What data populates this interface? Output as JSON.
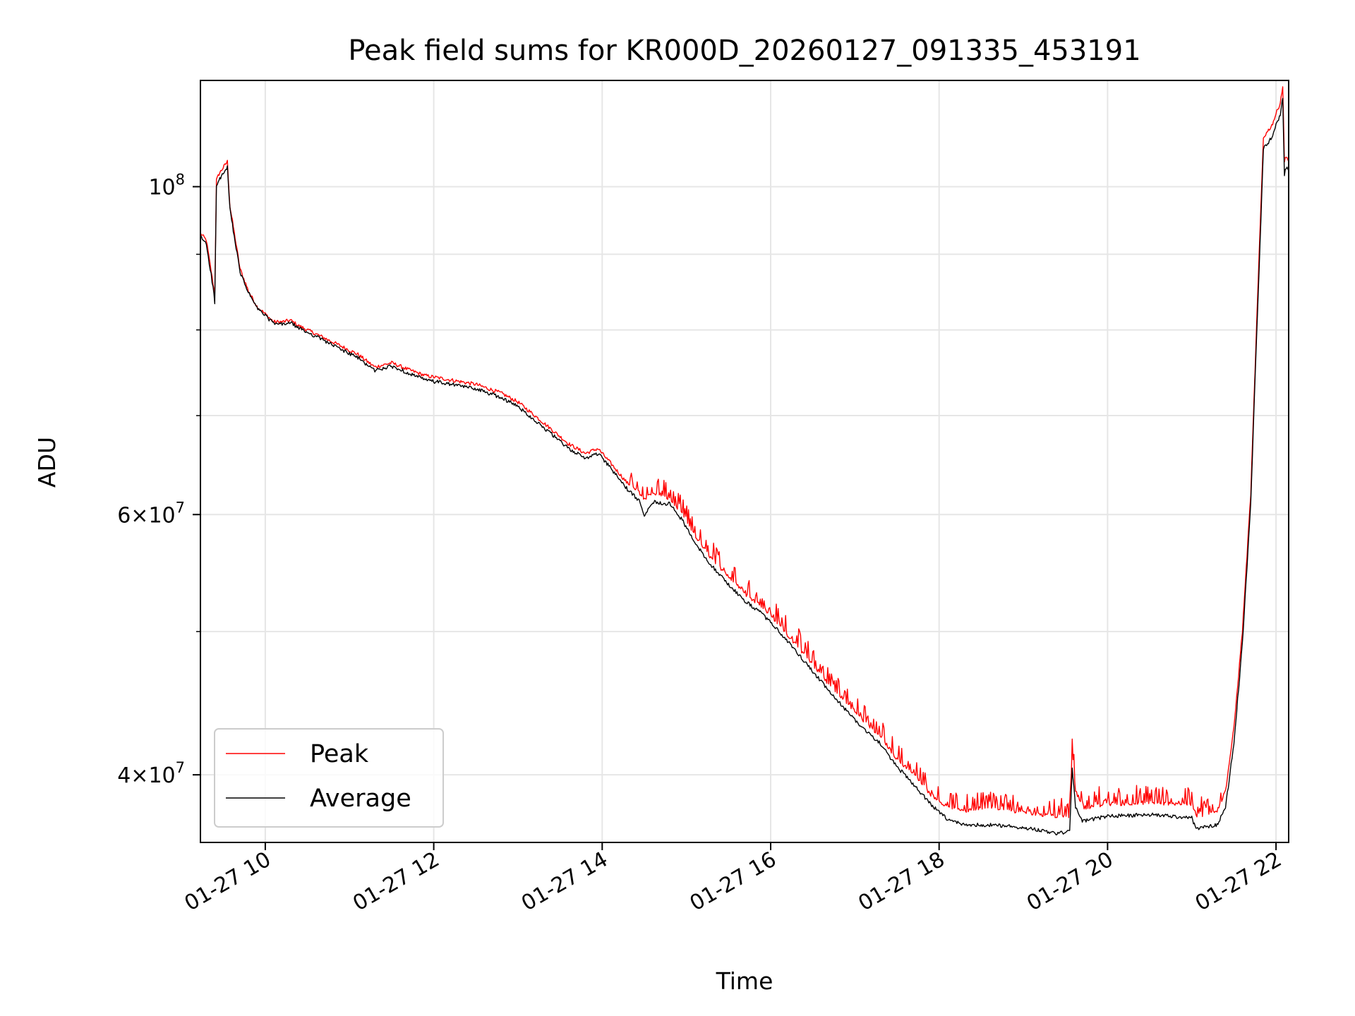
{
  "chart_data": {
    "type": "line",
    "title": "Peak field sums for KR000D_20260127_091335_453191",
    "xlabel": "Time",
    "ylabel": "ADU",
    "yscale": "log",
    "xlim": [
      9.23,
      22.15
    ],
    "ylim": [
      36000000,
      118000000
    ],
    "grid": true,
    "legend_position": "lower-left",
    "x_ticks": [
      {
        "value": 10,
        "label": "01-27 10"
      },
      {
        "value": 12,
        "label": "01-27 12"
      },
      {
        "value": 14,
        "label": "01-27 14"
      },
      {
        "value": 16,
        "label": "01-27 16"
      },
      {
        "value": 18,
        "label": "01-27 18"
      },
      {
        "value": 20,
        "label": "01-27 20"
      },
      {
        "value": 22,
        "label": "01-27 22"
      }
    ],
    "y_ticks": [
      {
        "value": 40000000,
        "base": "4",
        "exp": "7"
      },
      {
        "value": 60000000,
        "base": "6",
        "exp": "7"
      },
      {
        "value": 100000000,
        "base": "",
        "exp": "8"
      }
    ],
    "y_minor_gridlines": [
      50000000,
      70000000,
      80000000,
      90000000
    ],
    "series": [
      {
        "name": "Peak",
        "color": "#ff0000",
        "x": [
          9.23,
          9.3,
          9.38,
          9.4,
          9.42,
          9.45,
          9.5,
          9.55,
          9.58,
          9.62,
          9.7,
          9.8,
          9.9,
          10.0,
          10.1,
          10.2,
          10.3,
          10.4,
          10.5,
          10.7,
          10.9,
          11.1,
          11.3,
          11.5,
          11.7,
          11.9,
          12.2,
          12.5,
          12.8,
          13.0,
          13.2,
          13.4,
          13.6,
          13.8,
          13.95,
          14.1,
          14.3,
          14.45,
          14.5,
          14.6,
          14.8,
          14.95,
          15.1,
          15.3,
          15.5,
          15.7,
          15.9,
          16.1,
          16.3,
          16.5,
          16.7,
          16.9,
          17.1,
          17.3,
          17.5,
          17.7,
          17.9,
          18.1,
          18.3,
          18.6,
          18.9,
          19.2,
          19.4,
          19.55,
          19.58,
          19.62,
          19.7,
          20.0,
          20.5,
          21.0,
          21.05,
          21.3,
          21.4,
          21.5,
          21.6,
          21.7,
          21.75,
          21.8,
          21.85,
          21.9,
          21.95,
          22.0,
          22.05,
          22.08,
          22.1,
          22.12,
          22.15
        ],
        "y": [
          93000000,
          92000000,
          86000000,
          84500000,
          101000000,
          102000000,
          103000000,
          104000000,
          97000000,
          94000000,
          88000000,
          85000000,
          83000000,
          82000000,
          81000000,
          81000000,
          81200000,
          80500000,
          80000000,
          79000000,
          78000000,
          77000000,
          75500000,
          76000000,
          75200000,
          74500000,
          74000000,
          73500000,
          72500000,
          71500000,
          70000000,
          68500000,
          67000000,
          66000000,
          66500000,
          65000000,
          63000000,
          62000000,
          61500000,
          62000000,
          61500000,
          60000000,
          58000000,
          56000000,
          54500000,
          53000000,
          52000000,
          50500000,
          49000000,
          47500000,
          46000000,
          44800000,
          43500000,
          42500000,
          41000000,
          40000000,
          38800000,
          38000000,
          37800000,
          38000000,
          37800000,
          37600000,
          37500000,
          37500000,
          41500000,
          39000000,
          38000000,
          38200000,
          38300000,
          38200000,
          37500000,
          37800000,
          39000000,
          43000000,
          50000000,
          62000000,
          75000000,
          90000000,
          108000000,
          109000000,
          110000000,
          112000000,
          114000000,
          117000000,
          104000000,
          105000000,
          104000000
        ]
      },
      {
        "name": "Average",
        "color": "#000000",
        "x": [
          9.23,
          9.3,
          9.38,
          9.4,
          9.42,
          9.45,
          9.5,
          9.55,
          9.58,
          9.62,
          9.7,
          9.8,
          9.9,
          10.0,
          10.1,
          10.2,
          10.3,
          10.4,
          10.5,
          10.7,
          10.9,
          11.1,
          11.3,
          11.5,
          11.7,
          11.9,
          12.2,
          12.5,
          12.8,
          13.0,
          13.2,
          13.4,
          13.6,
          13.8,
          13.95,
          14.1,
          14.3,
          14.45,
          14.5,
          14.6,
          14.8,
          14.95,
          15.1,
          15.3,
          15.5,
          15.7,
          15.9,
          16.1,
          16.3,
          16.5,
          16.7,
          16.9,
          17.1,
          17.3,
          17.5,
          17.7,
          17.9,
          18.1,
          18.3,
          18.6,
          18.9,
          19.2,
          19.4,
          19.55,
          19.58,
          19.62,
          19.7,
          20.0,
          20.5,
          21.0,
          21.05,
          21.3,
          21.4,
          21.5,
          21.6,
          21.7,
          21.75,
          21.8,
          21.85,
          21.9,
          21.95,
          22.0,
          22.05,
          22.08,
          22.1,
          22.12,
          22.15
        ],
        "y": [
          92500000,
          91500000,
          85500000,
          83500000,
          100000000,
          101000000,
          102000000,
          103000000,
          96500000,
          93500000,
          87500000,
          84800000,
          82800000,
          81800000,
          80800000,
          80700000,
          80900000,
          80200000,
          79700000,
          78700000,
          77600000,
          76600000,
          75100000,
          75600000,
          74800000,
          74000000,
          73500000,
          73000000,
          72000000,
          71000000,
          69500000,
          68000000,
          66500000,
          65500000,
          66000000,
          64500000,
          62400000,
          61200000,
          60000000,
          61200000,
          61000000,
          59500000,
          57400000,
          55400000,
          53800000,
          52400000,
          51400000,
          50000000,
          48500000,
          47000000,
          45500000,
          44200000,
          43000000,
          42000000,
          40500000,
          39400000,
          38200000,
          37300000,
          37000000,
          37000000,
          36900000,
          36700000,
          36500000,
          36600000,
          40500000,
          38000000,
          37200000,
          37500000,
          37600000,
          37400000,
          36800000,
          37000000,
          38000000,
          42000000,
          49000000,
          61000000,
          74000000,
          88000000,
          106000000,
          107000000,
          108000000,
          110000000,
          112000000,
          115000000,
          102000000,
          103000000,
          102500000
        ]
      }
    ]
  }
}
